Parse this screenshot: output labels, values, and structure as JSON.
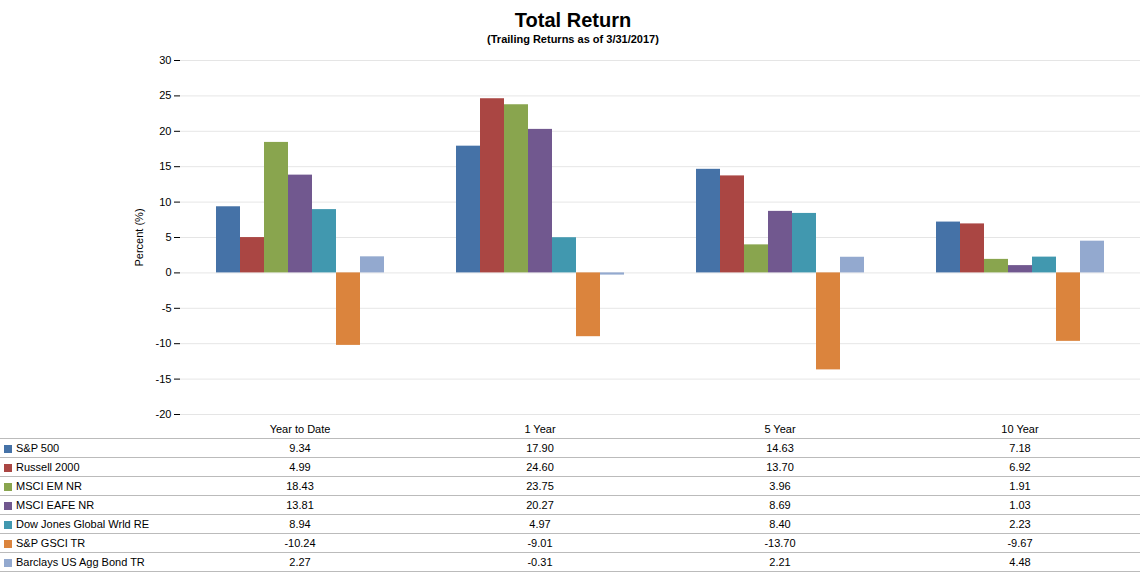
{
  "chart_data": {
    "type": "bar",
    "title": "Total Return",
    "subtitle": "(Trailing Returns as of 3/31/2017)",
    "ylabel": "Percent (%)",
    "categories": [
      "Year to Date",
      "1 Year",
      "5 Year",
      "10 Year"
    ],
    "series": [
      {
        "name": "S&P 500",
        "color": "#4572a7",
        "values": [
          9.34,
          17.9,
          14.63,
          7.18
        ]
      },
      {
        "name": "Russell 2000",
        "color": "#aa4643",
        "values": [
          4.99,
          24.6,
          13.7,
          6.92
        ]
      },
      {
        "name": "MSCI EM NR",
        "color": "#89a54e",
        "values": [
          18.43,
          23.75,
          3.96,
          1.91
        ]
      },
      {
        "name": "MSCI EAFE NR",
        "color": "#71588f",
        "values": [
          13.81,
          20.27,
          8.69,
          1.03
        ]
      },
      {
        "name": "Dow Jones Global Wrld RE",
        "color": "#4198af",
        "values": [
          8.94,
          4.97,
          8.4,
          2.23
        ]
      },
      {
        "name": "S&P GSCI TR",
        "color": "#db843d",
        "values": [
          -10.24,
          -9.01,
          -13.7,
          -9.67
        ]
      },
      {
        "name": "Barclays US Agg Bond TR",
        "color": "#93a9cf",
        "values": [
          2.27,
          -0.31,
          2.21,
          4.48
        ]
      }
    ],
    "ylim": [
      -20,
      30
    ],
    "yticks": [
      -20,
      -15,
      -10,
      -5,
      0,
      5,
      10,
      15,
      20,
      25,
      30
    ],
    "grid": true
  }
}
